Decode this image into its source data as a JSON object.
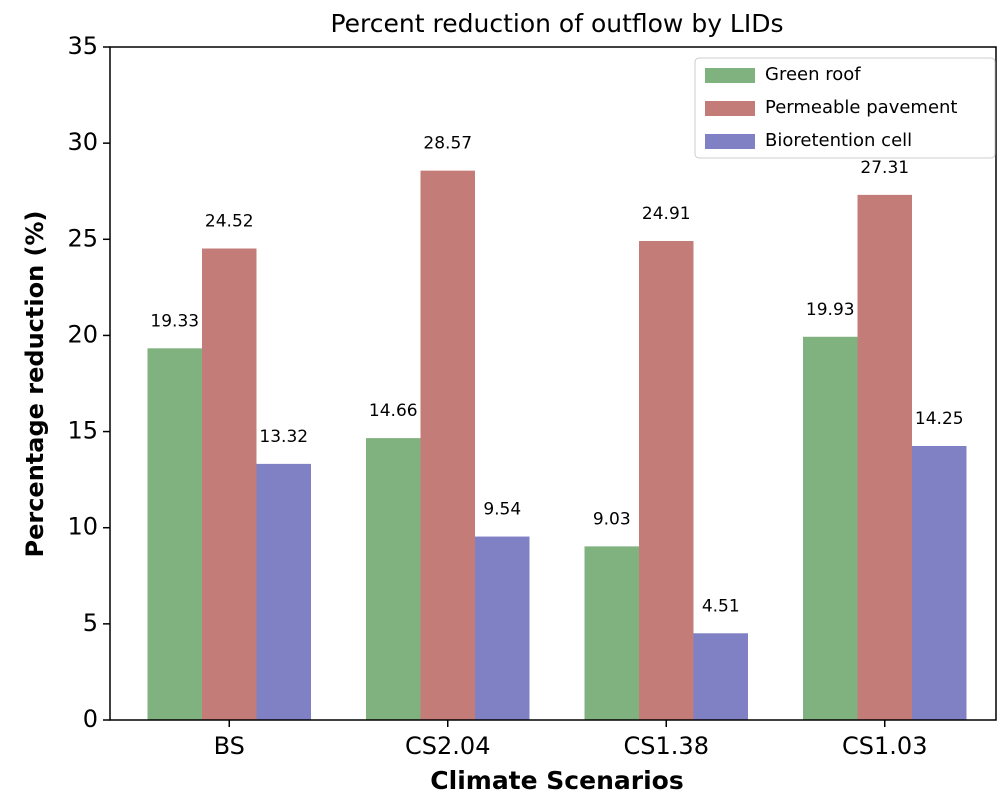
{
  "chart_data": {
    "type": "bar",
    "title": "Percent reduction of outflow by LIDs",
    "x_label": "Climate Scenarios",
    "y_label": "Percentage reduction (%)",
    "categories": [
      "BS",
      "CS2.04",
      "CS1.38",
      "CS1.03"
    ],
    "series": [
      {
        "name": "Green roof",
        "color": "#80b27f",
        "values": [
          19.33,
          14.66,
          9.03,
          19.93
        ]
      },
      {
        "name": "Permeable pavement",
        "color": "#c47c78",
        "values": [
          24.52,
          28.57,
          24.91,
          27.31
        ]
      },
      {
        "name": "Bioretention cell",
        "color": "#8080c4",
        "values": [
          13.32,
          9.54,
          4.51,
          14.25
        ]
      }
    ],
    "ylim": [
      0,
      35
    ],
    "yticks": [
      0,
      5,
      10,
      15,
      20,
      25,
      30,
      35
    ],
    "legend": "upper right"
  }
}
